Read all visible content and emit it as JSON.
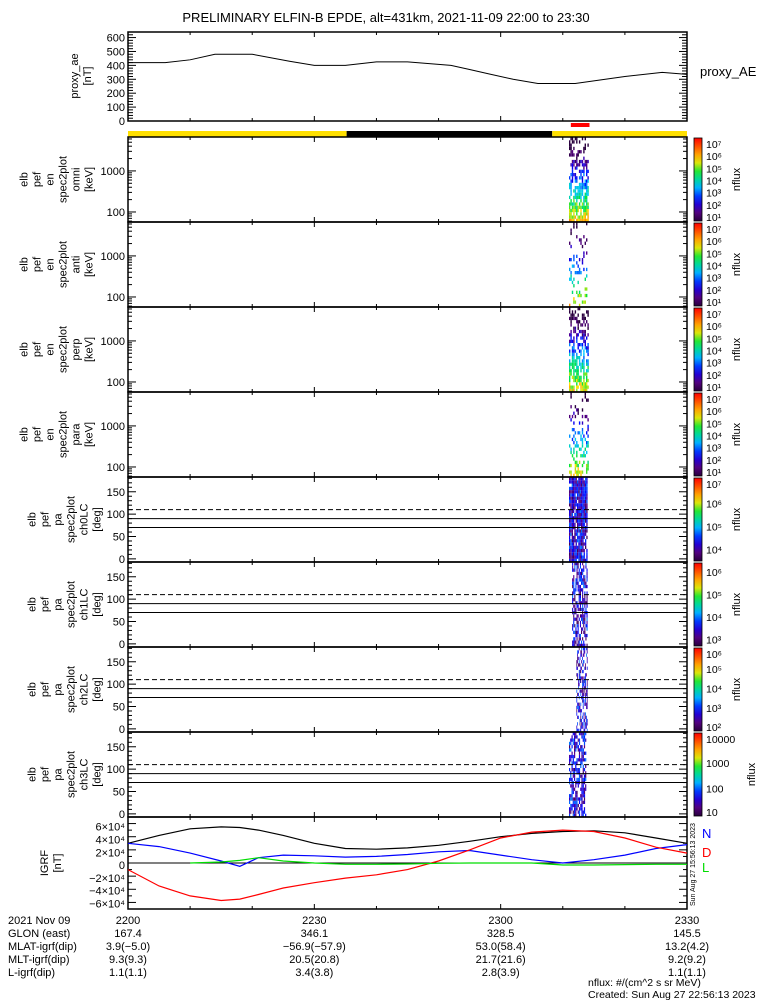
{
  "title": "PRELIMINARY ELFIN-B EPDE, alt=431km, 2021-11-09 22:00 to 23:30",
  "colors": {
    "yellow": "#ffe000",
    "black": "#000000",
    "red": "#ff0000",
    "blue": "#0000ff",
    "green": "#00dd00"
  },
  "chart_data": [
    {
      "type": "line",
      "name": "proxy_ae",
      "ylabel": "proxy_ae [nT]",
      "legend": "proxy_AE",
      "ylim": [
        0,
        640
      ],
      "yticks": [
        0,
        100,
        200,
        300,
        400,
        500,
        600
      ],
      "x_minutes": [
        0,
        6,
        10,
        14,
        20,
        26,
        30,
        35,
        40,
        45,
        52,
        55,
        58,
        62,
        66,
        72,
        80,
        86,
        90
      ],
      "values": [
        420,
        420,
        440,
        480,
        480,
        430,
        400,
        400,
        425,
        425,
        400,
        370,
        340,
        300,
        270,
        270,
        320,
        350,
        335
      ]
    },
    {
      "type": "bar",
      "name": "orbit-status-bar",
      "segments": [
        {
          "from": 0,
          "to": 35.2,
          "color": "#ffe000"
        },
        {
          "from": 35.2,
          "to": 68.3,
          "color": "#000000"
        },
        {
          "from": 68.3,
          "to": 90,
          "color": "#ffe000"
        }
      ],
      "science_zone": {
        "from": 71.3,
        "to": 74.3,
        "color": "#ff0000"
      }
    },
    {
      "type": "heatmap",
      "name": "spec-omni",
      "ylabel": [
        "elb",
        "pef",
        "en",
        "spec2plot",
        "omni",
        "[keV]"
      ],
      "yscale": "log",
      "ylim": [
        57,
        6700
      ],
      "yticks": [
        100,
        1000
      ],
      "zlabel": "nflux",
      "zexp": [
        1,
        2,
        3,
        4,
        5,
        6,
        7
      ],
      "zrange_exp": [
        0.8,
        7.2
      ],
      "time_window": [
        71.0,
        74.2
      ],
      "density": 0.85
    },
    {
      "type": "heatmap",
      "name": "spec-anti",
      "ylabel": [
        "elb",
        "pef",
        "en",
        "spec2plot",
        "anti",
        "[keV]"
      ],
      "yscale": "log",
      "ylim": [
        57,
        6700
      ],
      "yticks": [
        100,
        1000
      ],
      "zlabel": "nflux",
      "zexp": [
        1,
        2,
        3,
        4,
        5,
        6,
        7
      ],
      "zrange_exp": [
        0.8,
        7.2
      ],
      "time_window": [
        71.0,
        74.2
      ],
      "density": 0.25
    },
    {
      "type": "heatmap",
      "name": "spec-perp",
      "ylabel": [
        "elb",
        "pef",
        "en",
        "spec2plot",
        "perp",
        "[keV]"
      ],
      "yscale": "log",
      "ylim": [
        57,
        6700
      ],
      "yticks": [
        100,
        1000
      ],
      "zlabel": "nflux",
      "zexp": [
        1,
        2,
        3,
        4,
        5,
        6,
        7
      ],
      "zrange_exp": [
        0.8,
        7.2
      ],
      "time_window": [
        71.0,
        74.2
      ],
      "density": 0.8
    },
    {
      "type": "heatmap",
      "name": "spec-para",
      "ylabel": [
        "elb",
        "pef",
        "en",
        "spec2plot",
        "para",
        "[keV]"
      ],
      "yscale": "log",
      "ylim": [
        57,
        6700
      ],
      "yticks": [
        100,
        1000
      ],
      "zlabel": "nflux",
      "zexp": [
        1,
        2,
        3,
        4,
        5,
        6,
        7
      ],
      "zrange_exp": [
        0.8,
        7.2
      ],
      "time_window": [
        71.0,
        74.2
      ],
      "density": 0.45
    },
    {
      "type": "heatmap",
      "name": "pa-ch0",
      "ylabel": [
        "elb",
        "pef",
        "pa",
        "spec2plot",
        "ch0LC",
        "[deg]"
      ],
      "yscale": "linear",
      "ylim": [
        -7,
        183
      ],
      "yticks": [
        0,
        50,
        100,
        150
      ],
      "ref_lines": {
        "dashed": 110,
        "solid": [
          90,
          70
        ]
      },
      "zlabel": "nflux",
      "zexp": [
        4,
        5,
        6,
        7
      ],
      "zrange_exp": [
        3.5,
        7.1
      ],
      "time_window": [
        71.0,
        74.0
      ],
      "density": 0.9
    },
    {
      "type": "heatmap",
      "name": "pa-ch1",
      "ylabel": [
        "elb",
        "pef",
        "pa",
        "spec2plot",
        "ch1LC",
        "[deg]"
      ],
      "yscale": "linear",
      "ylim": [
        -7,
        183
      ],
      "yticks": [
        0,
        50,
        100,
        150
      ],
      "ref_lines": {
        "dashed": 110,
        "solid": [
          90,
          70
        ]
      },
      "zlabel": "nflux",
      "zexp": [
        3,
        4,
        5,
        6
      ],
      "zrange_exp": [
        2.7,
        6.4
      ],
      "time_window": [
        71.5,
        74.0
      ],
      "density": 0.6
    },
    {
      "type": "heatmap",
      "name": "pa-ch2",
      "ylabel": [
        "elb",
        "pef",
        "pa",
        "spec2plot",
        "ch2LC",
        "[deg]"
      ],
      "yscale": "linear",
      "ylim": [
        -7,
        183
      ],
      "yticks": [
        0,
        50,
        100,
        150
      ],
      "ref_lines": {
        "dashed": 110,
        "solid": [
          90,
          70
        ]
      },
      "zlabel": "nflux",
      "zexp": [
        2,
        3,
        4,
        5,
        6
      ],
      "zrange_exp": [
        1.8,
        6.1
      ],
      "time_window": [
        72.2,
        74.0
      ],
      "density": 0.5
    },
    {
      "type": "heatmap",
      "name": "pa-ch3",
      "ylabel": [
        "elb",
        "pef",
        "pa",
        "spec2plot",
        "ch3LC",
        "[deg]"
      ],
      "yscale": "linear",
      "ylim": [
        -7,
        183
      ],
      "yticks": [
        50,
        100,
        150,
        0
      ],
      "ref_lines": {
        "dashed": 110,
        "solid": [
          90,
          70
        ]
      },
      "zlabel": "nflux",
      "zlabels": [
        "10",
        "100",
        "1000",
        "10000"
      ],
      "zlabel_exp": [
        1,
        2,
        3,
        4
      ],
      "zrange_exp": [
        0.9,
        4.2
      ],
      "time_window": [
        71.0,
        73.8
      ],
      "density": 0.6
    },
    {
      "type": "line",
      "name": "igrf",
      "ylabel": "IGRF [nT]",
      "ylim": [
        -70000,
        70000
      ],
      "ytick_mantissa": [
        "6",
        "4",
        "2",
        "0",
        "−2",
        "−4",
        "−6"
      ],
      "yticks": [
        60000,
        40000,
        20000,
        0,
        -20000,
        -40000,
        -60000
      ],
      "legend": [
        "N",
        "D",
        "L"
      ],
      "x_minutes": [
        0,
        5,
        10,
        15,
        18,
        21,
        25,
        30,
        35,
        40,
        45,
        50,
        55,
        60,
        65,
        70,
        75,
        80,
        85,
        90
      ],
      "series": [
        {
          "name": "T",
          "color": "#000000",
          "values": [
            30000,
            42000,
            52000,
            55000,
            54000,
            50000,
            42000,
            30000,
            22000,
            21000,
            23000,
            27000,
            33000,
            40000,
            45000,
            48000,
            49000,
            46000,
            38000,
            30000
          ]
        },
        {
          "name": "N",
          "color": "#0000ff",
          "values": [
            30000,
            25000,
            15000,
            3000,
            -5000,
            8000,
            12000,
            11000,
            9000,
            10000,
            13000,
            17000,
            19000,
            12000,
            5000,
            0,
            5000,
            12000,
            22000,
            28000
          ]
        },
        {
          "name": "D",
          "color": "#ff0000",
          "values": [
            -10000,
            -35000,
            -50000,
            -57000,
            -55000,
            -48000,
            -38000,
            -30000,
            -23000,
            -18000,
            -10000,
            3000,
            20000,
            38000,
            47000,
            50000,
            48000,
            38000,
            24000,
            15000
          ]
        },
        {
          "name": "L",
          "color": "#00dd00",
          "values": [
            null,
            null,
            0,
            1500,
            4000,
            8000,
            3000,
            0,
            -2000,
            -2000,
            -1500,
            -500,
            0,
            0,
            0,
            -3000,
            -3000,
            -2500,
            -2000,
            -2000
          ]
        }
      ]
    }
  ],
  "xaxis": {
    "tick_minutes": [
      0,
      30,
      60,
      90
    ],
    "rows": [
      {
        "label": "2021 Nov 09",
        "values": [
          "2200",
          "2230",
          "2300",
          "2330"
        ]
      },
      {
        "label": "GLON (east)",
        "values": [
          "167.4",
          "346.1",
          "328.5",
          "145.5"
        ]
      },
      {
        "label": "MLAT-igrf(dip)",
        "values": [
          "3.9(−5.0)",
          "−56.9(−57.9)",
          "53.0(58.4)",
          "13.2(4.2)"
        ]
      },
      {
        "label": "MLT-igrf(dip)",
        "values": [
          "9.3(9.3)",
          "20.5(20.8)",
          "21.7(21.6)",
          "9.2(9.2)"
        ]
      },
      {
        "label": "L-igrf(dip)",
        "values": [
          "1.1(1.1)",
          "3.4(3.8)",
          "2.8(3.9)",
          "1.1(1.1)"
        ]
      }
    ]
  },
  "footer": {
    "units": "nflux: #/(cm^2 s sr MeV)",
    "created": "Created: Sun Aug 27 22:56:13 2023",
    "stamp": "Sun Aug 27 15:56:13 2023"
  }
}
